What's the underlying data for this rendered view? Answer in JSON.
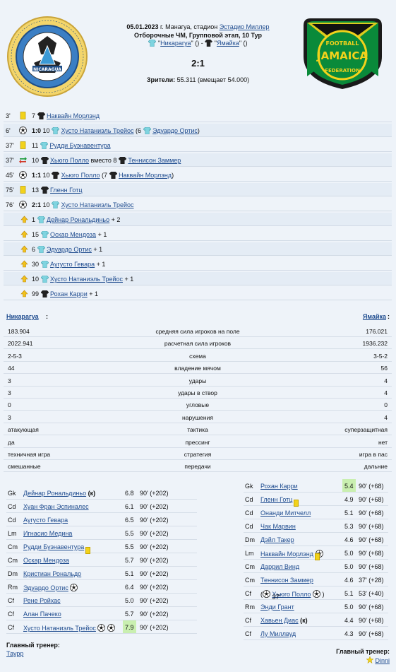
{
  "header": {
    "date": "05.01.2023",
    "place_prefix": "г. Манагуа, стадион",
    "stadium": "Эстадио Миллер",
    "stage": "Отборочные ЧМ, Групповой этап, 10 Тур",
    "home_team": "Никарагуа",
    "away_team": "Ямайка",
    "home_suffix": "\" ()  -",
    "away_suffix": "\" ()",
    "quote": "\"",
    "score": "2:1",
    "attendance_label": "Зрители:",
    "attendance_value": "55.311 (вмещает 54.000)"
  },
  "colors": {
    "home_shirt": "#7fd4e0",
    "away_shirt": "#222222",
    "yellow_card": "#f2d21b",
    "rating_highlight": "#c9efb0",
    "link": "#1f4c8f"
  },
  "events": [
    {
      "minute": "3'",
      "icon": "yellow-card-icon",
      "num": "7",
      "shirt": "away",
      "player": "Наквайн Морлэнд",
      "rest": ""
    },
    {
      "minute": "6'",
      "icon": "goal-ball-icon",
      "score": "1:0",
      "num": "10",
      "shirt": "home",
      "player": "Хусто Натаниэль Трейос",
      "assist_pre": "(6",
      "assist_shirt": "home",
      "assist": "Эдуардо Ортис",
      "assist_post": ")"
    },
    {
      "minute": "37'",
      "icon": "yellow-card-icon",
      "num": "11",
      "shirt": "home",
      "player": "Рудди Буэнавентура",
      "rest": ""
    },
    {
      "minute": "37'",
      "icon": "substitution-icon",
      "num": "10",
      "shirt": "away",
      "player": "Хьюго Полло",
      "mid": "вместо 8",
      "shirt2": "away",
      "player2": "Теннисон Заммер"
    },
    {
      "minute": "45'",
      "icon": "goal-ball-icon",
      "score": "1:1",
      "num": "10",
      "shirt": "away",
      "player": "Хьюго Полло",
      "assist_pre": "(7",
      "assist_shirt": "away",
      "assist": "Наквайн Морлэнд",
      "assist_post": ")"
    },
    {
      "minute": "75'",
      "icon": "yellow-card-icon",
      "num": "13",
      "shirt": "away",
      "player": "Гленн Готц",
      "rest": ""
    },
    {
      "minute": "76'",
      "icon": "goal-ball-icon",
      "score": "2:1",
      "num": "10",
      "shirt": "home",
      "player": "Хусто Натаниэль Трейос",
      "rest": ""
    }
  ],
  "assists": [
    {
      "num": "1",
      "shirt": "home",
      "player": "Дейнар Рональдиньо",
      "bonus": "+ 2"
    },
    {
      "num": "15",
      "shirt": "home",
      "player": "Оскар Мендоза",
      "bonus": "+ 1"
    },
    {
      "num": "6",
      "shirt": "home",
      "player": "Эдуардо Ортис",
      "bonus": "+ 1"
    },
    {
      "num": "30",
      "shirt": "home",
      "player": "Аугусто Гевара",
      "bonus": "+ 1"
    },
    {
      "num": "10",
      "shirt": "home",
      "player": "Хусто Натаниэль Трейос",
      "bonus": "+ 1"
    },
    {
      "num": "99",
      "shirt": "away",
      "player": "Рохан Карри",
      "bonus": "+ 1"
    }
  ],
  "stats": {
    "home_label": "Никарагуа",
    "away_label": "Ямайка",
    "colon": ":",
    "rows": [
      {
        "home": "183.904",
        "label": "средняя сила игроков на поле",
        "away": "176.021"
      },
      {
        "home": "2022.941",
        "label": "расчетная сила игроков",
        "away": "1936.232"
      },
      {
        "home": "2-5-3",
        "label": "схема",
        "away": "3-5-2"
      },
      {
        "home": "44",
        "label": "владение мячом",
        "away": "56"
      },
      {
        "home": "3",
        "label": "удары",
        "away": "4"
      },
      {
        "home": "3",
        "label": "удары в створ",
        "away": "4"
      },
      {
        "home": "0",
        "label": "угловые",
        "away": "0"
      },
      {
        "home": "3",
        "label": "нарушения",
        "away": "4"
      },
      {
        "home": "атакующая",
        "label": "тактика",
        "away": "суперзащитная"
      },
      {
        "home": "да",
        "label": "прессинг",
        "away": "нет"
      },
      {
        "home": "техничная игра",
        "label": "стратегия",
        "away": "игра в пас"
      },
      {
        "home": "смешанные",
        "label": "передачи",
        "away": "дальние"
      }
    ]
  },
  "home_lineup": [
    {
      "pos": "Gk",
      "name": "Дейнар Рональдиньо",
      "extra": "(к)",
      "rating": "6.8",
      "mins": "90' (+202)"
    },
    {
      "pos": "Cd",
      "name": "Хуан Фран Эспиналес",
      "rating": "6.1",
      "mins": "90' (+202)"
    },
    {
      "pos": "Cd",
      "name": "Аугусто Гевара",
      "rating": "6.5",
      "mins": "90' (+202)"
    },
    {
      "pos": "Lm",
      "name": "Игнасио Медина",
      "rating": "5.5",
      "mins": "90' (+202)"
    },
    {
      "pos": "Cm",
      "name": "Рудди Буэнавентура",
      "card": true,
      "rating": "5.5",
      "mins": "90' (+202)"
    },
    {
      "pos": "Cm",
      "name": "Оскар Мендоза",
      "rating": "5.7",
      "mins": "90' (+202)"
    },
    {
      "pos": "Dm",
      "name": "Кристиан Рональдо",
      "rating": "5.1",
      "mins": "90' (+202)"
    },
    {
      "pos": "Rm",
      "name": "Эдуардо Ортис",
      "balls": 1,
      "rating": "6.4",
      "mins": "90' (+202)"
    },
    {
      "pos": "Cf",
      "name": "Рене Ройхас",
      "rating": "5.0",
      "mins": "90' (+202)"
    },
    {
      "pos": "Cf",
      "name": "Алан Пачеко",
      "rating": "5.7",
      "mins": "90' (+202)"
    },
    {
      "pos": "Cf",
      "name": "Хусто Натаниэль Трейос",
      "balls": 2,
      "rating": "7.9",
      "highlight": true,
      "mins": "90' (+202)"
    }
  ],
  "away_lineup": [
    {
      "pos": "Gk",
      "name": "Рохан Карри",
      "rating": "5.4",
      "highlight": true,
      "mins": "90' (+68)"
    },
    {
      "pos": "Cd",
      "name": "Гленн Готц",
      "card": true,
      "rating": "4.9",
      "mins": "90' (+68)"
    },
    {
      "pos": "Cd",
      "name": "Онанди Митчелл",
      "rating": "5.1",
      "mins": "90' (+68)"
    },
    {
      "pos": "Cd",
      "name": "Чак Марвин",
      "rating": "5.3",
      "mins": "90' (+68)"
    },
    {
      "pos": "Dm",
      "name": "Дэйл Такер",
      "rating": "4.6",
      "mins": "90' (+68)"
    },
    {
      "pos": "Lm",
      "name": "Наквайн Морлэнд",
      "card": true,
      "balls": 1,
      "rating": "5.0",
      "mins": "90' (+68)"
    },
    {
      "pos": "Cm",
      "name": "Даррил Винд",
      "rating": "5.0",
      "mins": "90' (+68)"
    },
    {
      "pos": "Cm",
      "name": "Теннисон Заммер",
      "rating": "4.6",
      "mins": "37' (+28)"
    },
    {
      "pos": "Cf",
      "name": "Хьюго Полло",
      "sub_pre": "37'",
      "balls": 1,
      "rating": "5.1",
      "mins": "53' (+40)"
    },
    {
      "pos": "Rm",
      "name": "Энди Грант",
      "rating": "5.0",
      "mins": "90' (+68)"
    },
    {
      "pos": "Cf",
      "name": "Хавьен Диас",
      "extra": "(к)",
      "rating": "4.4",
      "mins": "90' (+68)"
    },
    {
      "pos": "Cf",
      "name": "Лу Миллвуд",
      "rating": "4.3",
      "mins": "90' (+68)"
    }
  ],
  "coaches": {
    "label": "Главный тренер:",
    "home": "Таурр",
    "away": "Dinni"
  }
}
